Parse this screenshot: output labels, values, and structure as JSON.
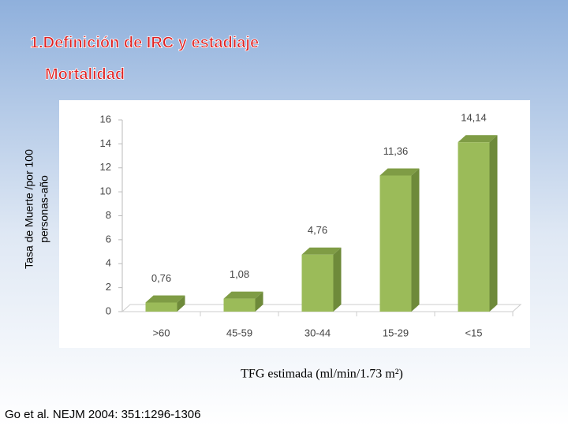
{
  "chart_data": {
    "type": "bar",
    "title": "1.Definición de IRC y estadiaje",
    "subtitle": "Mortalidad",
    "ylabel": [
      "Tasa de Muerte /por 100",
      "personas-año"
    ],
    "xlabel": "TFG estimada (ml/min/1.73 m²)",
    "source": "Go et al. NEJM 2004: 351:1296-1306",
    "categories": [
      ">60",
      "45-59",
      "30-44",
      "15-29",
      "<15"
    ],
    "values": [
      0.76,
      1.08,
      4.76,
      11.36,
      14.14
    ],
    "value_labels": [
      "0,76",
      "1,08",
      "4,76",
      "11,36",
      "14,14"
    ],
    "color": "#9bbb59",
    "ylim": [
      0,
      16
    ],
    "yticks": [
      0,
      2,
      4,
      6,
      8,
      10,
      12,
      14,
      16
    ],
    "grid": false
  }
}
